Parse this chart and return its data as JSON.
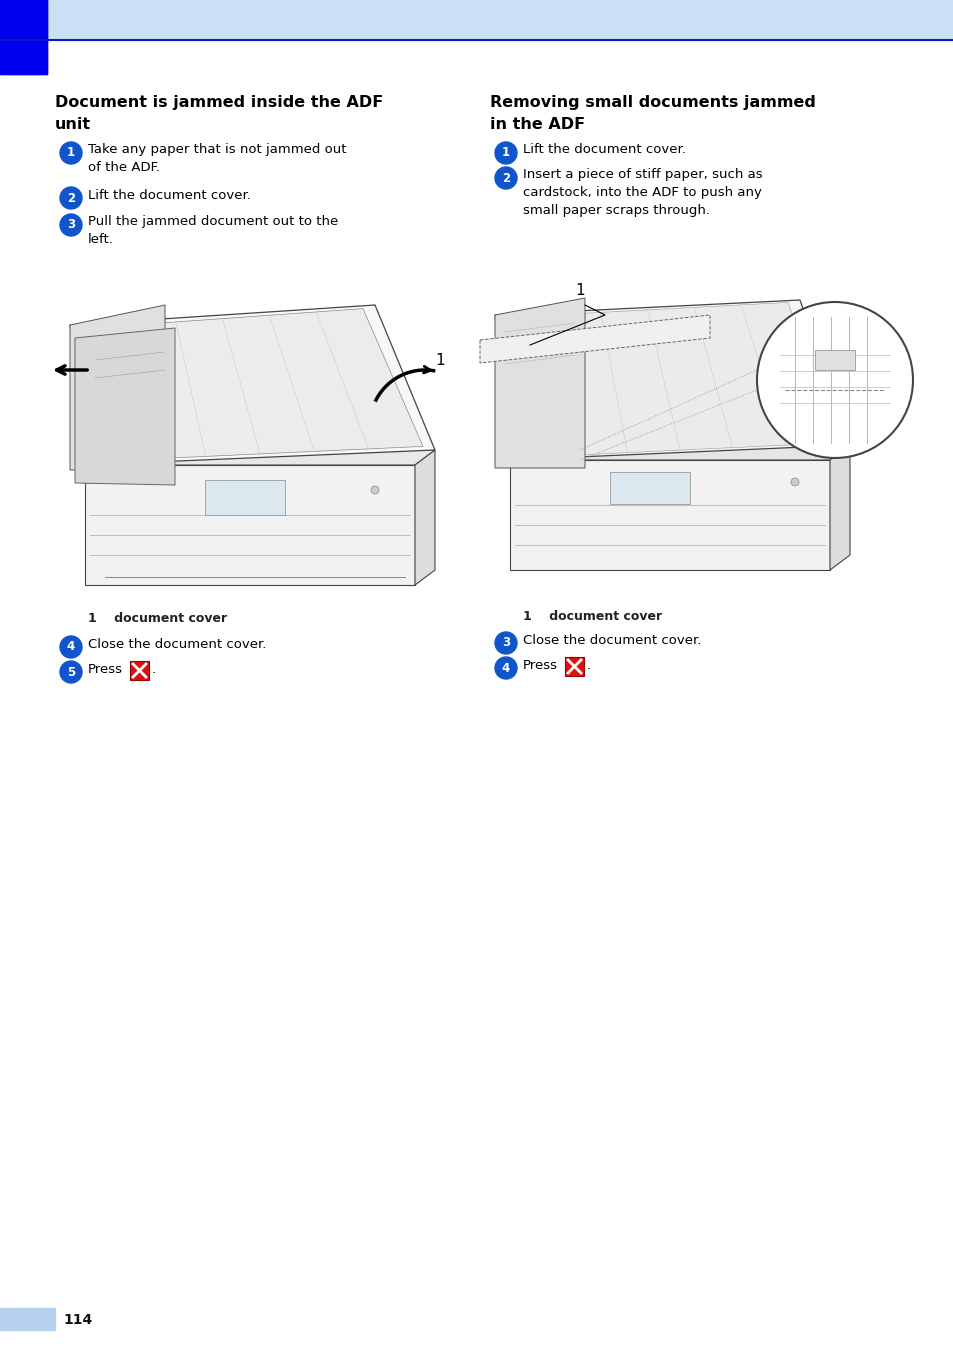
{
  "page_bg": "#ffffff",
  "header_bg": "#cce0f5",
  "blue_rect_color": "#0000ee",
  "blue_line_color": "#0022bb",
  "footer_box_color": "#b8d0f0",
  "page_number": "114",
  "left_title_line1": "Document is jammed inside the ADF",
  "left_title_line2": "unit",
  "right_title_line1": "Removing small documents jammed",
  "right_title_line2": "in the ADF",
  "step_circle_color": "#1155cc",
  "step_text_color": "#000000",
  "title_color": "#000000",
  "label_doc_cover": "1    document cover",
  "left_steps": [
    "Take any paper that is not jammed out\nof the ADF.",
    "Lift the document cover.",
    "Pull the jammed document out to the\nleft."
  ],
  "left_after_steps": [
    "Close the document cover.",
    "Press"
  ],
  "right_steps": [
    "Lift the document cover.",
    "Insert a piece of stiff paper, such as\ncardstock, into the ADF to push any\nsmall paper scraps through."
  ],
  "right_after_steps": [
    "Close the document cover.",
    "Press"
  ]
}
